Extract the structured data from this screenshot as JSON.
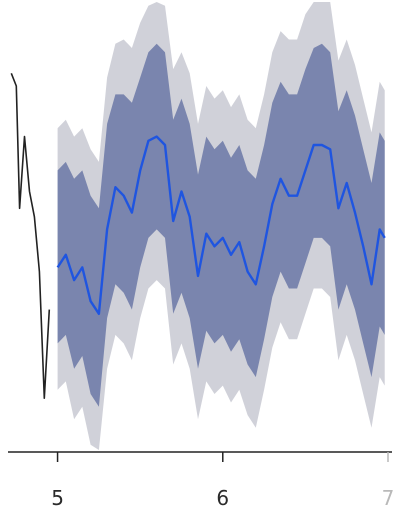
{
  "chart_data": {
    "type": "line",
    "title": "",
    "xlabel": "",
    "ylabel": "",
    "xlim": [
      4.7,
      7.0
    ],
    "ylim": [
      0,
      100
    ],
    "grid": false,
    "legend": "none",
    "x_ticks": [
      {
        "value": 5,
        "label": "5"
      },
      {
        "value": 6,
        "label": "6"
      },
      {
        "value": 7,
        "label": "7"
      }
    ],
    "colors": {
      "history": "#222222",
      "forecast": "#1f55e0",
      "band_inner": "#6b78a6",
      "band_outer": "#c8c9d2",
      "axis": "#222222",
      "tick_label": "#2a2a2a",
      "tick_label_faded": "#b9b9b9"
    },
    "series": [
      {
        "role": "history",
        "x": [
          4.72,
          4.75,
          4.77,
          4.8,
          4.83,
          4.86,
          4.89,
          4.92,
          4.95
        ],
        "y": [
          85,
          82,
          53,
          70,
          57,
          51,
          38,
          8,
          29
        ]
      },
      {
        "role": "forecast",
        "x": [
          5.0,
          5.05,
          5.1,
          5.15,
          5.2,
          5.25,
          5.3,
          5.35,
          5.4,
          5.45,
          5.5,
          5.55,
          5.6,
          5.65,
          5.7,
          5.75,
          5.8,
          5.85,
          5.9,
          5.95,
          6.0,
          6.05,
          6.1,
          6.15,
          6.2,
          6.25,
          6.3,
          6.35,
          6.4,
          6.45,
          6.5,
          6.55,
          6.6,
          6.65,
          6.7,
          6.75,
          6.8,
          6.85,
          6.9,
          6.95,
          6.98
        ],
        "y": [
          39,
          42,
          36,
          39,
          31,
          28,
          48,
          58,
          56,
          52,
          62,
          69,
          70,
          68,
          50,
          57,
          51,
          37,
          47,
          44,
          46,
          42,
          45,
          38,
          35,
          44,
          54,
          60,
          56,
          56,
          62,
          68,
          68,
          67,
          53,
          59,
          52,
          44,
          35,
          48,
          46
        ]
      },
      {
        "role": "band_inner",
        "x": [
          5.0,
          5.05,
          5.1,
          5.15,
          5.2,
          5.25,
          5.3,
          5.35,
          5.4,
          5.45,
          5.5,
          5.55,
          5.6,
          5.65,
          5.7,
          5.75,
          5.8,
          5.85,
          5.9,
          5.95,
          6.0,
          6.05,
          6.1,
          6.15,
          6.2,
          6.25,
          6.3,
          6.35,
          6.4,
          6.45,
          6.5,
          6.55,
          6.6,
          6.65,
          6.7,
          6.75,
          6.8,
          6.85,
          6.9,
          6.95,
          6.98
        ],
        "upper": [
          62,
          64,
          60,
          62,
          56,
          53,
          73,
          80,
          80,
          78,
          84,
          90,
          92,
          90,
          74,
          79,
          73,
          61,
          70,
          67,
          69,
          65,
          68,
          62,
          60,
          68,
          78,
          83,
          80,
          80,
          86,
          91,
          92,
          90,
          76,
          81,
          75,
          67,
          59,
          71,
          69
        ],
        "lower": [
          21,
          23,
          15,
          18,
          9,
          6,
          27,
          35,
          33,
          29,
          39,
          46,
          48,
          46,
          28,
          33,
          27,
          15,
          24,
          21,
          23,
          19,
          22,
          16,
          13,
          22,
          32,
          38,
          34,
          34,
          40,
          46,
          46,
          44,
          29,
          35,
          29,
          21,
          13,
          25,
          23
        ]
      },
      {
        "role": "band_outer",
        "x": [
          5.0,
          5.05,
          5.1,
          5.15,
          5.2,
          5.25,
          5.3,
          5.35,
          5.4,
          5.45,
          5.5,
          5.55,
          5.6,
          5.65,
          5.7,
          5.75,
          5.8,
          5.85,
          5.9,
          5.95,
          6.0,
          6.05,
          6.1,
          6.15,
          6.2,
          6.25,
          6.3,
          6.35,
          6.4,
          6.45,
          6.5,
          6.55,
          6.6,
          6.65,
          6.7,
          6.75,
          6.8,
          6.85,
          6.9,
          6.95,
          6.98
        ],
        "upper": [
          72,
          74,
          70,
          72,
          67,
          64,
          84,
          92,
          93,
          91,
          97,
          101,
          103,
          101,
          86,
          90,
          85,
          73,
          82,
          79,
          81,
          77,
          80,
          74,
          72,
          80,
          90,
          95,
          93,
          93,
          99,
          103,
          104,
          102,
          88,
          93,
          87,
          79,
          71,
          83,
          81
        ],
        "lower": [
          10,
          12,
          3,
          6,
          -3,
          -6,
          15,
          23,
          21,
          17,
          27,
          34,
          36,
          34,
          16,
          21,
          15,
          3,
          12,
          9,
          11,
          7,
          10,
          4,
          1,
          10,
          20,
          26,
          22,
          22,
          28,
          34,
          34,
          32,
          17,
          23,
          17,
          9,
          1,
          13,
          11
        ]
      }
    ]
  }
}
